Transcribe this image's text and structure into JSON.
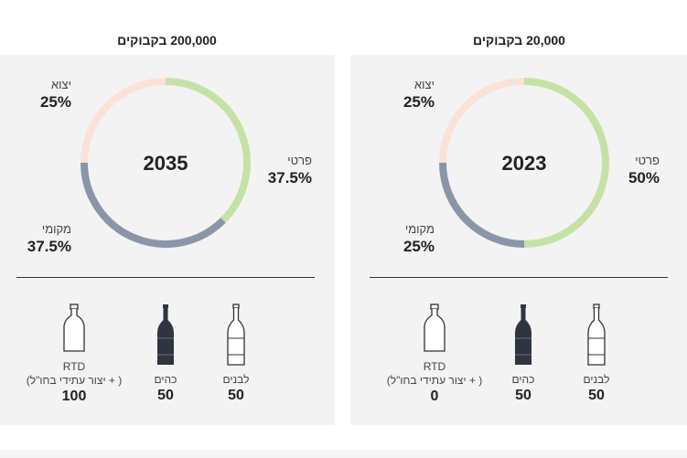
{
  "colors": {
    "private": "#c4e2a5",
    "local": "#8a96a8",
    "export": "#fbe2d9",
    "panel_bg": "#f3f3f3",
    "bottle_dark": "#2e3440"
  },
  "left": {
    "title": "200,000 בקבוקים",
    "year": "2035",
    "segments": {
      "private": {
        "name": "פרטי",
        "value": "37.5%",
        "fraction": 0.375
      },
      "local": {
        "name": "מקומי",
        "value": "37.5%",
        "fraction": 0.375
      },
      "export": {
        "name": "יצוא",
        "value": "25%",
        "fraction": 0.25
      }
    },
    "bottles": [
      {
        "name": "לבנים",
        "value": "50",
        "icon": "white-wine-bottle-icon"
      },
      {
        "name": "כהים",
        "value": "50",
        "icon": "red-wine-bottle-icon"
      },
      {
        "name_line1": "RTD",
        "name_line2": "( + יצור עתידי בחו\"ל)",
        "value": "100",
        "icon": "rtd-bottle-icon"
      }
    ]
  },
  "right": {
    "title": "20,000 בקבוקים",
    "year": "2023",
    "segments": {
      "private": {
        "name": "פרטי",
        "value": "50%",
        "fraction": 0.5
      },
      "local": {
        "name": "מקומי",
        "value": "25%",
        "fraction": 0.25
      },
      "export": {
        "name": "יצוא",
        "value": "25%",
        "fraction": 0.25
      }
    },
    "bottles": [
      {
        "name": "לבנים",
        "value": "50",
        "icon": "white-wine-bottle-icon"
      },
      {
        "name": "כהים",
        "value": "50",
        "icon": "red-wine-bottle-icon"
      },
      {
        "name_line1": "RTD",
        "name_line2": "( + יצור עתידי בחו\"ל)",
        "value": "0",
        "icon": "rtd-bottle-icon"
      }
    ]
  }
}
